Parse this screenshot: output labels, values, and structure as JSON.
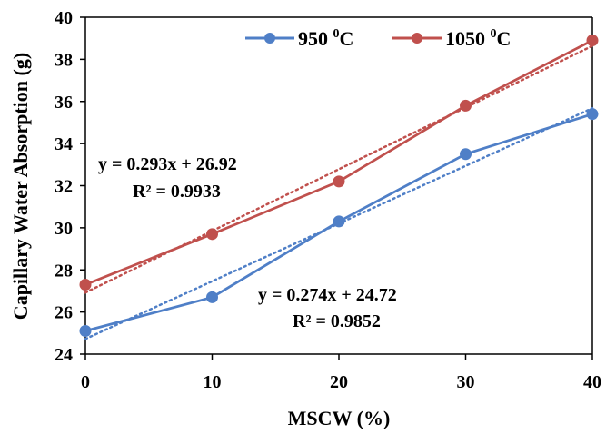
{
  "chart_data": {
    "type": "line",
    "xlabel": "MSCW (%)",
    "ylabel": "Capillary Water Absorption (g)",
    "xlim": [
      0,
      40
    ],
    "ylim": [
      24,
      40
    ],
    "x": [
      0,
      10,
      20,
      30,
      40
    ],
    "x_ticks": [
      "0",
      "10",
      "20",
      "30",
      "40"
    ],
    "y_ticks": [
      "24",
      "26",
      "28",
      "30",
      "32",
      "34",
      "36",
      "38",
      "40"
    ],
    "grid": false,
    "legend_position": "top",
    "series": [
      {
        "name": "950 ⁰C",
        "legend_base": "950 ",
        "legend_sup": "0",
        "legend_unit": "C",
        "color": "#4f7fc7",
        "marker": "circle",
        "values": [
          25.1,
          26.7,
          30.3,
          33.5,
          35.4
        ],
        "trendline": {
          "slope": 0.274,
          "intercept": 24.72,
          "style": "dotted"
        },
        "equation": "y = 0.274x + 24.72",
        "r_squared": "R² = 0.9852"
      },
      {
        "name": "1050 ⁰C",
        "legend_base": "1050 ",
        "legend_sup": "0",
        "legend_unit": "C",
        "color": "#c0504d",
        "marker": "circle",
        "values": [
          27.3,
          29.7,
          32.2,
          35.8,
          38.9
        ],
        "trendline": {
          "slope": 0.293,
          "intercept": 26.92,
          "style": "dotted"
        },
        "equation": "y = 0.293x + 26.92",
        "r_squared": "R² = 0.9933"
      }
    ]
  }
}
